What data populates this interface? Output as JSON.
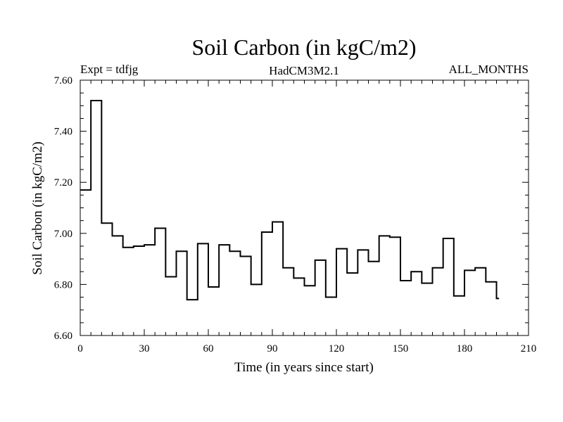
{
  "chart_data": {
    "type": "line",
    "style": "step",
    "title": "Soil Carbon (in kgC/m2)",
    "header_left": "Expt = tdfjg",
    "header_center": "HadCM3M2.1",
    "header_right": "ALL_MONTHS",
    "xlabel": "Time (in years since start)",
    "ylabel": "Soil Carbon (in kgC/m2)",
    "xlim": [
      0,
      210
    ],
    "ylim": [
      6.6,
      7.6
    ],
    "x_ticks": [
      0,
      30,
      60,
      90,
      120,
      150,
      180,
      210
    ],
    "x_tick_labels": [
      "0",
      "30",
      "60",
      "90",
      "120",
      "150",
      "180",
      "210"
    ],
    "y_ticks": [
      6.6,
      6.8,
      7.0,
      7.2,
      7.4,
      7.6
    ],
    "y_tick_labels": [
      "6.60",
      "6.80",
      "7.00",
      "7.20",
      "7.40",
      "7.60"
    ],
    "grid": false,
    "line_color": "#000000",
    "series": [
      {
        "x": [
          0,
          5,
          10,
          15,
          20,
          25,
          30,
          35,
          40,
          45,
          50,
          55,
          60,
          65,
          70,
          75,
          80,
          85,
          90,
          95,
          100,
          105,
          110,
          115,
          120,
          125,
          130,
          135,
          140,
          145,
          150,
          155,
          160,
          165,
          170,
          175,
          180,
          185,
          190,
          195
        ],
        "values": [
          7.17,
          7.52,
          7.04,
          6.99,
          6.945,
          6.95,
          6.955,
          7.02,
          6.83,
          6.93,
          6.74,
          6.96,
          6.79,
          6.955,
          6.93,
          6.91,
          6.8,
          7.005,
          7.045,
          6.865,
          6.825,
          6.795,
          6.895,
          6.75,
          6.94,
          6.845,
          6.935,
          6.89,
          6.99,
          6.985,
          6.815,
          6.85,
          6.805,
          6.865,
          6.98,
          6.755,
          6.855,
          6.865,
          6.81,
          6.745
        ]
      }
    ]
  }
}
